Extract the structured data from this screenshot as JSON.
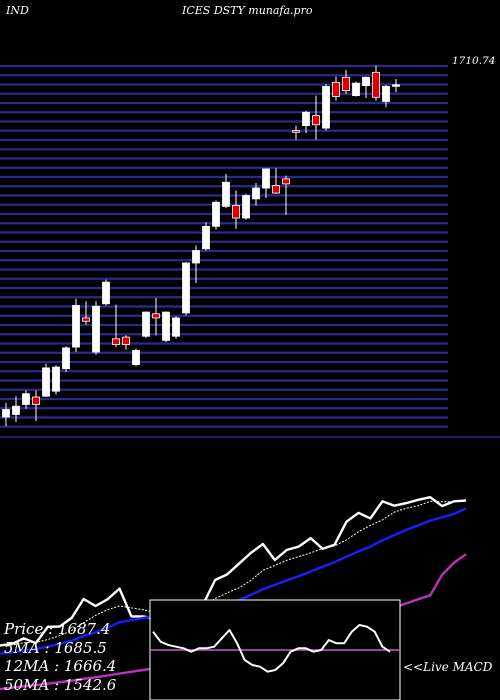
{
  "header": {
    "left": "IND",
    "center": "ICES DSTY munafa.pro"
  },
  "chart_data": {
    "type": "candlestick",
    "y_tick_top": "1710.74",
    "price_ylim": [
      1270,
      1712
    ],
    "candles": [
      {
        "o": 1288,
        "c": 1297,
        "h": 1305,
        "l": 1277
      },
      {
        "o": 1291,
        "c": 1301,
        "h": 1313,
        "l": 1282
      },
      {
        "o": 1303,
        "c": 1316,
        "h": 1320,
        "l": 1298
      },
      {
        "o": 1312,
        "c": 1303,
        "h": 1320,
        "l": 1283
      },
      {
        "o": 1313,
        "c": 1347,
        "h": 1352,
        "l": 1312
      },
      {
        "o": 1319,
        "c": 1348,
        "h": 1350,
        "l": 1315
      },
      {
        "o": 1346,
        "c": 1371,
        "h": 1373,
        "l": 1342
      },
      {
        "o": 1372,
        "c": 1422,
        "h": 1430,
        "l": 1366
      },
      {
        "o": 1407,
        "c": 1403,
        "h": 1427,
        "l": 1399
      },
      {
        "o": 1366,
        "c": 1421,
        "h": 1427,
        "l": 1363
      },
      {
        "o": 1424,
        "c": 1450,
        "h": 1453,
        "l": 1422
      },
      {
        "o": 1382,
        "c": 1375,
        "h": 1423,
        "l": 1372
      },
      {
        "o": 1384,
        "c": 1375,
        "h": 1386,
        "l": 1369
      },
      {
        "o": 1351,
        "c": 1368,
        "h": 1370,
        "l": 1349
      },
      {
        "o": 1385,
        "c": 1414,
        "h": 1415,
        "l": 1383
      },
      {
        "o": 1412,
        "c": 1407,
        "h": 1431,
        "l": 1386
      },
      {
        "o": 1380,
        "c": 1414,
        "h": 1415,
        "l": 1378
      },
      {
        "o": 1385,
        "c": 1407,
        "h": 1409,
        "l": 1382
      },
      {
        "o": 1413,
        "c": 1473,
        "h": 1474,
        "l": 1410
      },
      {
        "o": 1473,
        "c": 1488,
        "h": 1494,
        "l": 1449
      },
      {
        "o": 1490,
        "c": 1517,
        "h": 1522,
        "l": 1488
      },
      {
        "o": 1517,
        "c": 1546,
        "h": 1548,
        "l": 1513
      },
      {
        "o": 1541,
        "c": 1570,
        "h": 1580,
        "l": 1539
      },
      {
        "o": 1542,
        "c": 1527,
        "h": 1560,
        "l": 1514
      },
      {
        "o": 1527,
        "c": 1554,
        "h": 1556,
        "l": 1525
      },
      {
        "o": 1550,
        "c": 1563,
        "h": 1569,
        "l": 1542
      },
      {
        "o": 1563,
        "c": 1586,
        "h": 1586,
        "l": 1551
      },
      {
        "o": 1566,
        "c": 1557,
        "h": 1587,
        "l": 1556
      },
      {
        "o": 1574,
        "c": 1568,
        "h": 1578,
        "l": 1531
      },
      {
        "o": 1632,
        "c": 1630,
        "h": 1638,
        "l": 1621
      },
      {
        "o": 1638,
        "c": 1654,
        "h": 1656,
        "l": 1629
      },
      {
        "o": 1650,
        "c": 1639,
        "h": 1674,
        "l": 1621
      },
      {
        "o": 1635,
        "c": 1685,
        "h": 1688,
        "l": 1632
      },
      {
        "o": 1690,
        "c": 1673,
        "h": 1697,
        "l": 1668
      },
      {
        "o": 1696,
        "c": 1680,
        "h": 1705,
        "l": 1676
      },
      {
        "o": 1674,
        "c": 1689,
        "h": 1691,
        "l": 1673
      },
      {
        "o": 1686,
        "c": 1696,
        "h": 1697,
        "l": 1671
      },
      {
        "o": 1702,
        "c": 1672,
        "h": 1710,
        "l": 1668
      },
      {
        "o": 1667,
        "c": 1685,
        "h": 1687,
        "l": 1660
      },
      {
        "o": 1687,
        "c": 1687,
        "h": 1694,
        "l": 1678
      }
    ],
    "indicator_ylim": [
      1150,
      1850
    ],
    "series": [
      {
        "name": "Price",
        "color": "#ffffff",
        "values": [
          1297,
          1301,
          1316,
          1303,
          1347,
          1348,
          1371,
          1422,
          1403,
          1421,
          1450,
          1375,
          1375,
          1368,
          1414,
          1407,
          1414,
          1407,
          1473,
          1488,
          1517,
          1546,
          1570,
          1527,
          1554,
          1563,
          1586,
          1557,
          1568,
          1630,
          1654,
          1639,
          1685,
          1673,
          1680,
          1689,
          1696,
          1672,
          1685,
          1687
        ]
      },
      {
        "name": "5MA",
        "color": "#ffffff",
        "values": [
          1295,
          1298,
          1304,
          1305,
          1313,
          1323,
          1337,
          1358,
          1378,
          1393,
          1403,
          1398,
          1393,
          1385,
          1396,
          1398,
          1400,
          1402,
          1423,
          1438,
          1452,
          1472,
          1499,
          1512,
          1526,
          1536,
          1546,
          1558,
          1565,
          1581,
          1603,
          1620,
          1635,
          1656,
          1666,
          1673,
          1685,
          1684,
          1684,
          1686
        ]
      },
      {
        "name": "12MA",
        "color": "#1c1cff",
        "values": [
          1275,
          1278,
          1283,
          1287,
          1294,
          1301,
          1310,
          1322,
          1332,
          1345,
          1359,
          1365,
          1371,
          1376,
          1382,
          1386,
          1389,
          1392,
          1401,
          1409,
          1419,
          1433,
          1448,
          1460,
          1472,
          1483,
          1496,
          1509,
          1521,
          1536,
          1550,
          1563,
          1580,
          1594,
          1608,
          1620,
          1633,
          1642,
          1651,
          1666
        ]
      },
      {
        "name": "50MA",
        "color": "#c030c0",
        "values": [
          1180,
          1183,
          1187,
          1190,
          1194,
          1198,
          1202,
          1207,
          1211,
          1216,
          1221,
          1226,
          1231,
          1236,
          1242,
          1248,
          1254,
          1260,
          1267,
          1274,
          1281,
          1289,
          1297,
          1305,
          1313,
          1322,
          1331,
          1340,
          1349,
          1358,
          1368,
          1378,
          1388,
          1399,
          1410,
          1421,
          1432,
          1487,
          1520,
          1542.6
        ]
      }
    ],
    "macd": {
      "label": "<<Live MACD",
      "baseline": 0,
      "ylim": [
        -1.5,
        1.5
      ],
      "values": [
        0.55,
        0.25,
        0.15,
        0.1,
        0.05,
        -0.05,
        0.05,
        0.05,
        0.1,
        0.35,
        0.6,
        0.2,
        -0.3,
        -0.45,
        -0.5,
        -0.65,
        -0.6,
        -0.4,
        -0.05,
        0.05,
        0.05,
        -0.05,
        0.0,
        0.3,
        0.2,
        0.2,
        0.55,
        0.75,
        0.7,
        0.55,
        0.1,
        -0.05
      ]
    }
  },
  "stats": {
    "price": "Price   : 1687.4",
    "ma5": "5MA  : 1685.5",
    "ma12": "12MA : 1666.4",
    "ma50": "50MA : 1542.6"
  }
}
